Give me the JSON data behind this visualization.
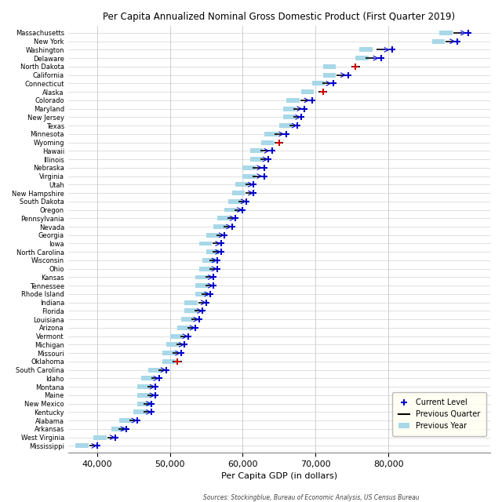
{
  "title": "Per Capita Annualized Nominal Gross Domestic Product (First Quarter 2019)",
  "xlabel": "Per Capita GDP (in dollars)",
  "source": "Sources: Stockingblue, Bureau of Economic Analysis, US Census Bureau",
  "states": [
    "Massachusetts",
    "New York",
    "Washington",
    "Delaware",
    "North Dakota",
    "California",
    "Connecticut",
    "Alaska",
    "Colorado",
    "Maryland",
    "New Jersey",
    "Texas",
    "Minnesota",
    "Wyoming",
    "Hawaii",
    "Illinois",
    "Nebraska",
    "Virginia",
    "Utah",
    "New Hampshire",
    "South Dakota",
    "Oregon",
    "Pennsylvania",
    "Nevada",
    "Georgia",
    "Iowa",
    "North Carolina",
    "Wisconsin",
    "Ohio",
    "Kansas",
    "Tennessee",
    "Rhode Island",
    "Indiana",
    "Florida",
    "Louisiana",
    "Arizona",
    "Vermont",
    "Michigan",
    "Missouri",
    "Oklahoma",
    "South Carolina",
    "Idaho",
    "Montana",
    "Maine",
    "New Mexico",
    "Kentucky",
    "Alabama",
    "Arkansas",
    "West Virginia",
    "Mississippi"
  ],
  "current": [
    91000,
    89500,
    80500,
    79000,
    75500,
    74500,
    72500,
    71000,
    69500,
    68500,
    68000,
    67500,
    66000,
    65000,
    64000,
    63500,
    63000,
    63000,
    61500,
    61500,
    60500,
    60000,
    59000,
    58500,
    57500,
    57000,
    57000,
    56500,
    56500,
    56000,
    56000,
    55500,
    55000,
    54500,
    54000,
    53500,
    52500,
    52000,
    51500,
    51000,
    49500,
    48500,
    48000,
    48000,
    47500,
    47500,
    45500,
    44000,
    42500,
    40000
  ],
  "prev_quarter": [
    89500,
    88500,
    79000,
    77500,
    75500,
    73500,
    71500,
    71000,
    68500,
    67500,
    67500,
    67000,
    65000,
    65000,
    63000,
    63000,
    62000,
    62000,
    61000,
    61000,
    60000,
    59500,
    58500,
    58000,
    57000,
    56500,
    56500,
    56000,
    56000,
    55500,
    55500,
    55000,
    54500,
    54000,
    53500,
    53000,
    52000,
    51500,
    51000,
    51000,
    49000,
    48000,
    47500,
    47500,
    47000,
    47000,
    45000,
    43500,
    42000,
    39500
  ],
  "prev_year_low": [
    87000,
    86000,
    76000,
    75500,
    71000,
    71000,
    69500,
    68000,
    66000,
    65500,
    65500,
    65000,
    63000,
    62500,
    61000,
    61000,
    60000,
    60000,
    59000,
    58500,
    58000,
    57500,
    56500,
    56000,
    55000,
    54000,
    55000,
    54500,
    54000,
    53500,
    53500,
    53500,
    52000,
    52000,
    51500,
    51000,
    50000,
    49500,
    49000,
    49000,
    47000,
    46000,
    45500,
    45500,
    45500,
    45000,
    43000,
    42000,
    39500,
    37000
  ],
  "prev_year_high": [
    88500,
    87500,
    77500,
    77000,
    72500,
    72500,
    71000,
    69500,
    67500,
    66500,
    66500,
    66000,
    64500,
    64000,
    62500,
    62500,
    61000,
    61000,
    60000,
    59500,
    59000,
    58500,
    57500,
    57000,
    56000,
    55000,
    56000,
    55500,
    55000,
    54500,
    54500,
    54000,
    53000,
    52500,
    52500,
    52000,
    51000,
    50500,
    50000,
    49500,
    48000,
    47000,
    46500,
    46500,
    46000,
    46000,
    43500,
    42500,
    40500,
    38000
  ],
  "red_states": [
    "North Dakota",
    "Alaska",
    "Wyoming",
    "Oklahoma"
  ],
  "xlim": [
    36000,
    94000
  ],
  "xticks": [
    40000,
    50000,
    60000,
    70000,
    80000
  ],
  "dot_color_blue": "#0000CC",
  "dot_color_red": "#CC0000",
  "prev_quarter_color": "#000000",
  "prev_year_color": "#a8d8e8",
  "legend_bg": "#fffff0",
  "fig_bg": "#ffffff",
  "grid_color": "#c8c8c8"
}
